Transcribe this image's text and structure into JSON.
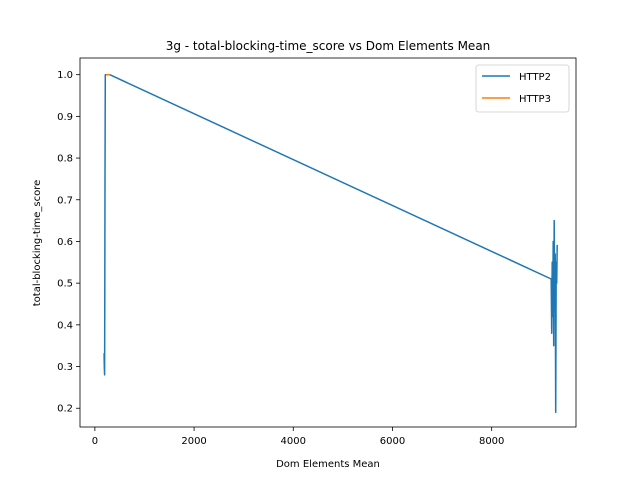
{
  "chart_data": {
    "type": "line",
    "title": "3g - total-blocking-time_score vs Dom Elements Mean",
    "xlabel": "Dom Elements Mean",
    "ylabel": "total-blocking-time_score",
    "xlim": [
      -300,
      9700
    ],
    "ylim": [
      0.155,
      1.04
    ],
    "xticks": [
      0,
      2000,
      4000,
      6000,
      8000
    ],
    "xtick_labels": [
      "0",
      "2000",
      "4000",
      "6000",
      "8000"
    ],
    "yticks": [
      0.2,
      0.3,
      0.4,
      0.5,
      0.6,
      0.7,
      0.8,
      0.9,
      1.0
    ],
    "ytick_labels": [
      "0.2",
      "0.3",
      "0.4",
      "0.5",
      "0.6",
      "0.7",
      "0.8",
      "0.9",
      "1.0"
    ],
    "grid": false,
    "legend_position": "top-right",
    "series": [
      {
        "name": "HTTP2",
        "color": "#1f77b4",
        "x": [
          185,
          190,
          195,
          200,
          205,
          210,
          240,
          300,
          9200,
          9210,
          9220,
          9230,
          9240,
          9250,
          9260,
          9270,
          9280,
          9290,
          9300,
          9310,
          9320
        ],
        "y": [
          0.33,
          0.3,
          0.28,
          0.48,
          0.75,
          1.0,
          1.0,
          1.0,
          0.51,
          0.38,
          0.55,
          0.42,
          0.6,
          0.35,
          0.65,
          0.45,
          0.57,
          0.19,
          0.55,
          0.5,
          0.59
        ]
      },
      {
        "name": "HTTP3",
        "color": "#ff7f0e",
        "x": [
          240,
          290
        ],
        "y": [
          1.0,
          1.0
        ]
      }
    ]
  }
}
